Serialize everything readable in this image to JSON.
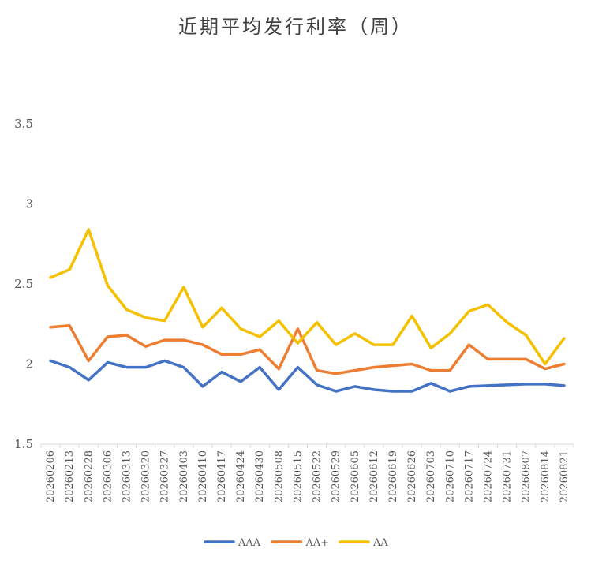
{
  "chart_data": {
    "type": "line",
    "title": "近期平均发行利率（周）",
    "xlabel": "",
    "ylabel": "",
    "ylim": [
      1.5,
      3.5
    ],
    "yticks": [
      "1.5",
      "2",
      "2.5",
      "3",
      "3.5"
    ],
    "grid": false,
    "legend_position": "bottom",
    "categories": [
      "20260206",
      "20260213",
      "20260228",
      "20260306",
      "20260313",
      "20260320",
      "20260327",
      "20260403",
      "20260410",
      "20260417",
      "20260424",
      "20260430",
      "20260508",
      "20260515",
      "20260522",
      "20260529",
      "20260605",
      "20260612",
      "20260619",
      "20260626",
      "20260703",
      "20260710",
      "20260717",
      "20260724",
      "20260731",
      "20260807",
      "20260814",
      "20260821"
    ],
    "series": [
      {
        "name": "AAA",
        "color": "#4472C4",
        "values": [
          2.02,
          1.98,
          1.9,
          2.01,
          1.98,
          1.98,
          2.02,
          1.98,
          1.86,
          1.95,
          1.89,
          1.98,
          1.84,
          1.98,
          1.87,
          1.83,
          1.86,
          1.84,
          1.83,
          1.83,
          1.88,
          1.83,
          1.86,
          1.865,
          1.87,
          1.875,
          1.875,
          1.865
        ]
      },
      {
        "name": "AA+",
        "color": "#ED7D31",
        "values": [
          2.23,
          2.24,
          2.02,
          2.17,
          2.18,
          2.11,
          2.15,
          2.15,
          2.12,
          2.06,
          2.06,
          2.09,
          1.97,
          2.22,
          1.96,
          1.94,
          1.96,
          1.98,
          1.99,
          2.0,
          1.96,
          1.96,
          2.12,
          2.03,
          2.03,
          2.03,
          1.97,
          2.0
        ]
      },
      {
        "name": "AA",
        "color": "#F5C000",
        "values": [
          2.54,
          2.59,
          2.84,
          2.49,
          2.34,
          2.29,
          2.27,
          2.48,
          2.23,
          2.35,
          2.22,
          2.17,
          2.27,
          2.13,
          2.26,
          2.12,
          2.19,
          2.12,
          2.12,
          2.3,
          2.1,
          2.19,
          2.33,
          2.37,
          2.26,
          2.18,
          2.0,
          2.16
        ]
      }
    ]
  }
}
